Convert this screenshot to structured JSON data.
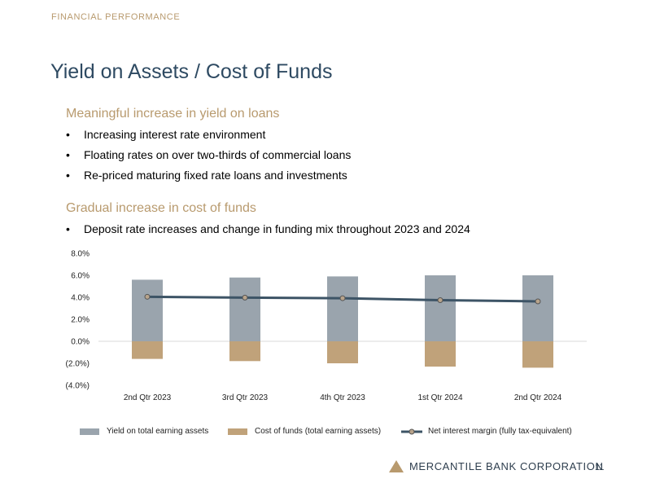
{
  "header": {
    "section": "FINANCIAL PERFORMANCE",
    "title": "Yield on Assets / Cost of Funds"
  },
  "sections": [
    {
      "heading": "Meaningful increase in yield on loans",
      "bullets": [
        "Increasing interest rate environment",
        "Floating rates on over two-thirds of commercial loans",
        "Re-priced maturing fixed rate loans and investments"
      ]
    },
    {
      "heading": "Gradual increase in cost of funds",
      "bullets": [
        "Deposit rate increases and change in funding mix throughout 2023 and 2024"
      ]
    }
  ],
  "colors": {
    "yield": "#9aa4ad",
    "cost": "#c0a27a",
    "margin_line": "#3d5466",
    "marker_fill": "#b8a48c",
    "accent": "#b89a6e",
    "title": "#2e4a62"
  },
  "chart_data": {
    "type": "bar",
    "categories": [
      "2nd Qtr 2023",
      "3rd Qtr 2023",
      "4th Qtr 2023",
      "1st Qtr 2024",
      "2nd Qtr 2024"
    ],
    "series": [
      {
        "name": "Yield on total earning assets",
        "type": "bar",
        "values": [
          5.6,
          5.8,
          5.9,
          6.0,
          6.0
        ]
      },
      {
        "name": "Cost of funds (total earning assets)",
        "type": "bar",
        "values": [
          -1.6,
          -1.8,
          -2.0,
          -2.3,
          -2.4
        ]
      },
      {
        "name": "Net interest margin (fully tax-equivalent)",
        "type": "line",
        "values": [
          4.05,
          3.97,
          3.92,
          3.74,
          3.63
        ]
      }
    ],
    "y_ticks": [
      "8.0%",
      "6.0%",
      "4.0%",
      "2.0%",
      "0.0%",
      "(2.0%)",
      "(4.0%)"
    ],
    "ylim": [
      -4,
      8
    ],
    "legend_position": "bottom"
  },
  "footer": {
    "company": "MERCANTILE BANK CORPORATION",
    "page": "11"
  }
}
